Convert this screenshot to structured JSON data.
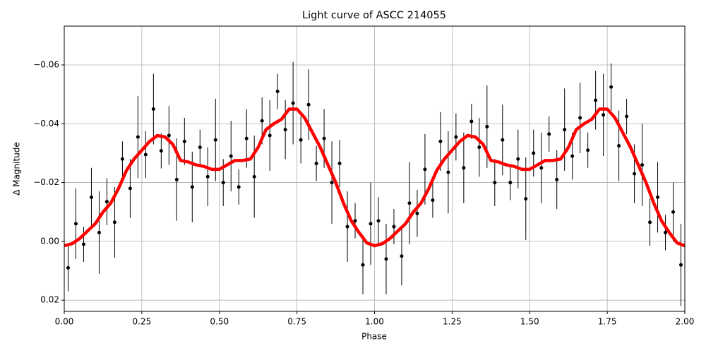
{
  "chart_data": {
    "type": "scatter",
    "title": "Light curve of ASCC 214055",
    "xlabel": "Phase",
    "ylabel": "Δ Magnitude",
    "xlim": [
      0,
      2
    ],
    "ylim": [
      -0.0732,
      0.0238
    ],
    "invert_y": true,
    "grid": true,
    "xticks": [
      {
        "value": 0,
        "label": "0.00"
      },
      {
        "value": 0.25,
        "label": "0.25"
      },
      {
        "value": 0.5,
        "label": "0.50"
      },
      {
        "value": 0.75,
        "label": "0.75"
      },
      {
        "value": 1,
        "label": "1.00"
      },
      {
        "value": 1.25,
        "label": "1.25"
      },
      {
        "value": 1.5,
        "label": "1.50"
      },
      {
        "value": 1.75,
        "label": "1.75"
      },
      {
        "value": 2,
        "label": "2.00"
      }
    ],
    "yticks": [
      {
        "value": -0.06,
        "label": "−0.06"
      },
      {
        "value": -0.04,
        "label": "−0.04"
      },
      {
        "value": -0.02,
        "label": "−0.02"
      },
      {
        "value": 0,
        "label": "0.00"
      },
      0.02
    ],
    "series": [
      {
        "type": "errorbar",
        "color": "#000000",
        "x": [
          0.0125,
          0.0375,
          0.0625,
          0.0875,
          0.1125,
          0.1375,
          0.1625,
          0.1875,
          0.2125,
          0.2375,
          0.2625,
          0.2875,
          0.3125,
          0.3375,
          0.3625,
          0.3875,
          0.4125,
          0.4375,
          0.4625,
          0.4875,
          0.5125,
          0.5375,
          0.5625,
          0.5875,
          0.6125,
          0.6375,
          0.6625,
          0.6875,
          0.7125,
          0.7375,
          0.7625,
          0.7875,
          0.8125,
          0.8375,
          0.8625,
          0.8875,
          0.9125,
          0.9375,
          0.9625,
          0.9875,
          1.0125,
          1.0375,
          1.0625,
          1.0875,
          1.1125,
          1.1375,
          1.1625,
          1.1875,
          1.2125,
          1.2375,
          1.2625,
          1.2875,
          1.3125,
          1.3375,
          1.3625,
          1.3875,
          1.4125,
          1.4375,
          1.4625,
          1.4875,
          1.5125,
          1.5375,
          1.5625,
          1.5875,
          1.6125,
          1.6375,
          1.6625,
          1.6875,
          1.7125,
          1.7375,
          1.7625,
          1.7875,
          1.8125,
          1.8375,
          1.8625,
          1.8875,
          1.9125,
          1.9375,
          1.9625,
          1.9875
        ],
        "values": [
          0.009,
          -0.006,
          0.001,
          -0.015,
          -0.003,
          -0.0135,
          -0.0065,
          -0.028,
          -0.018,
          -0.0355,
          -0.0295,
          -0.045,
          -0.0308,
          -0.036,
          -0.021,
          -0.034,
          -0.0185,
          -0.032,
          -0.022,
          -0.0345,
          -0.02,
          -0.029,
          -0.0185,
          -0.035,
          -0.022,
          -0.041,
          -0.036,
          -0.051,
          -0.038,
          -0.047,
          -0.0345,
          -0.0465,
          -0.0265,
          -0.035,
          -0.02,
          -0.0265,
          -0.005,
          -0.007,
          0.008,
          -0.006,
          -0.007,
          0.006,
          -0.005,
          0.005,
          -0.013,
          -0.0095,
          -0.0245,
          -0.014,
          -0.034,
          -0.0235,
          -0.0355,
          -0.025,
          -0.0408,
          -0.032,
          -0.039,
          -0.02,
          -0.0345,
          -0.02,
          -0.028,
          -0.0145,
          -0.03,
          -0.025,
          -0.0365,
          -0.021,
          -0.038,
          -0.029,
          -0.042,
          -0.031,
          -0.048,
          -0.043,
          -0.0525,
          -0.0325,
          -0.0425,
          -0.023,
          -0.026,
          -0.0065,
          -0.015,
          -0.003,
          -0.01,
          0.008
        ],
        "errors": [
          0.008,
          0.012,
          0.006,
          0.01,
          0.014,
          0.008,
          0.012,
          0.006,
          0.01,
          0.014,
          0.008,
          0.012,
          0.006,
          0.01,
          0.014,
          0.008,
          0.012,
          0.006,
          0.01,
          0.014,
          0.008,
          0.012,
          0.006,
          0.01,
          0.014,
          0.008,
          0.012,
          0.006,
          0.01,
          0.014,
          0.008,
          0.012,
          0.006,
          0.01,
          0.014,
          0.008,
          0.012,
          0.006,
          0.01,
          0.014,
          0.008,
          0.012,
          0.006,
          0.01,
          0.014,
          0.008,
          0.012,
          0.006,
          0.01,
          0.014,
          0.008,
          0.012,
          0.006,
          0.01,
          0.014,
          0.008,
          0.012,
          0.006,
          0.01,
          0.014,
          0.008,
          0.012,
          0.006,
          0.01,
          0.014,
          0.008,
          0.012,
          0.006,
          0.01,
          0.014,
          0.008,
          0.012,
          0.006,
          0.01,
          0.014,
          0.008,
          0.012,
          0.006,
          0.01,
          0.014
        ]
      },
      {
        "type": "line",
        "color": "#ff0000",
        "x": [
          0,
          0.025,
          0.05,
          0.075,
          0.1,
          0.125,
          0.15,
          0.175,
          0.2,
          0.225,
          0.25,
          0.275,
          0.3,
          0.325,
          0.35,
          0.375,
          0.4,
          0.425,
          0.45,
          0.475,
          0.5,
          0.525,
          0.55,
          0.575,
          0.6,
          0.625,
          0.65,
          0.675,
          0.7,
          0.725,
          0.75,
          0.775,
          0.8,
          0.825,
          0.85,
          0.875,
          0.9,
          0.925,
          0.95,
          0.975,
          1,
          1.025,
          1.05,
          1.075,
          1.1,
          1.125,
          1.15,
          1.175,
          1.2,
          1.225,
          1.25,
          1.275,
          1.3,
          1.325,
          1.35,
          1.375,
          1.4,
          1.425,
          1.45,
          1.475,
          1.5,
          1.525,
          1.55,
          1.575,
          1.6,
          1.625,
          1.65,
          1.675,
          1.7,
          1.725,
          1.75,
          1.775,
          1.8,
          1.825,
          1.85,
          1.875,
          1.9,
          1.925,
          1.95,
          1.975,
          2
        ],
        "values": [
          0.0015,
          0.0008,
          -0.001,
          -0.0035,
          -0.006,
          -0.01,
          -0.013,
          -0.018,
          -0.024,
          -0.028,
          -0.031,
          -0.034,
          -0.036,
          -0.0355,
          -0.033,
          -0.0275,
          -0.027,
          -0.026,
          -0.0255,
          -0.0245,
          -0.0245,
          -0.026,
          -0.0275,
          -0.0275,
          -0.028,
          -0.032,
          -0.038,
          -0.04,
          -0.0415,
          -0.045,
          -0.045,
          -0.042,
          -0.037,
          -0.032,
          -0.026,
          -0.02,
          -0.013,
          -0.007,
          -0.003,
          0.0005,
          0.0015,
          0.0008,
          -0.001,
          -0.0035,
          -0.006,
          -0.01,
          -0.013,
          -0.018,
          -0.024,
          -0.028,
          -0.031,
          -0.034,
          -0.036,
          -0.0355,
          -0.033,
          -0.0275,
          -0.027,
          -0.026,
          -0.0255,
          -0.0245,
          -0.0245,
          -0.026,
          -0.0275,
          -0.0275,
          -0.028,
          -0.032,
          -0.038,
          -0.04,
          -0.0415,
          -0.045,
          -0.045,
          -0.042,
          -0.037,
          -0.032,
          -0.026,
          -0.02,
          -0.013,
          -0.007,
          -0.003,
          0.0005,
          0.0015
        ]
      }
    ]
  }
}
